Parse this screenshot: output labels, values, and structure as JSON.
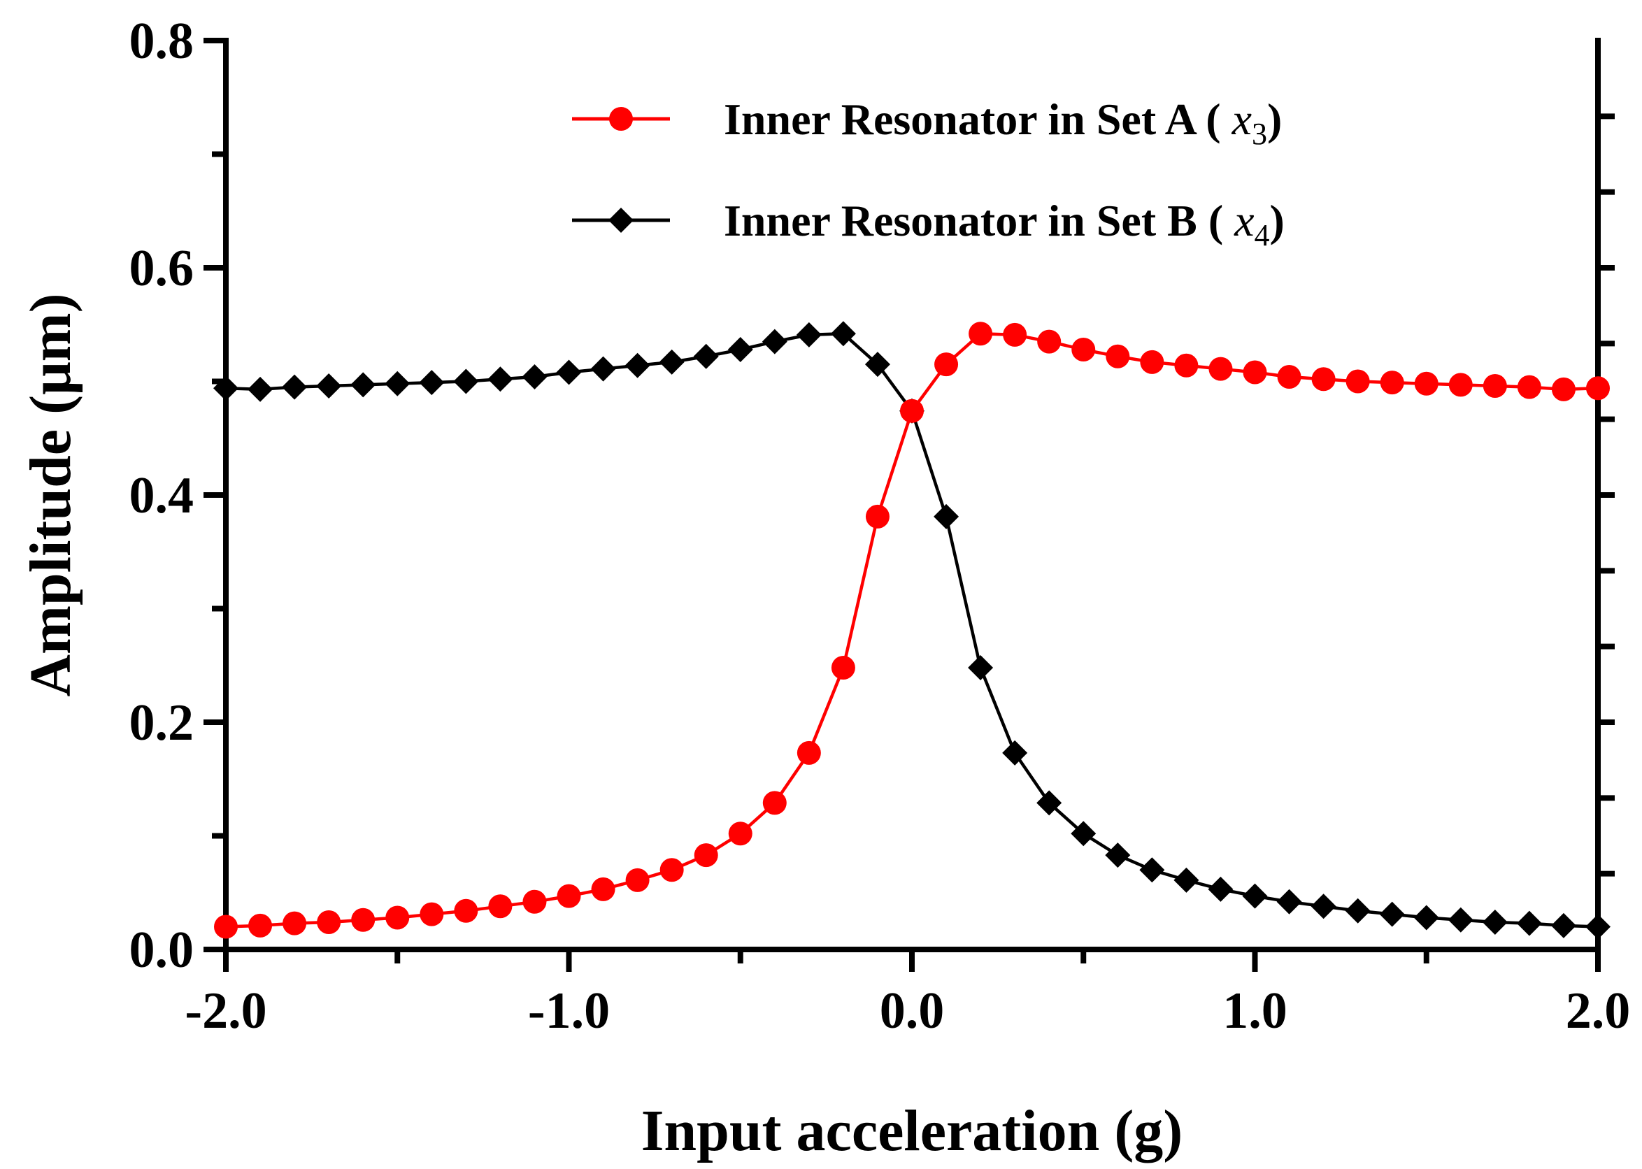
{
  "chart_data": {
    "type": "line",
    "title": "",
    "xlabel": "Input acceleration (g)",
    "ylabel": "Amplitude (μm)",
    "xlim": [
      -2.0,
      2.0
    ],
    "ylim": [
      0.0,
      0.8
    ],
    "xticks": [
      -2.0,
      -1.0,
      0.0,
      1.0,
      2.0
    ],
    "xtick_labels": [
      "-2.0",
      "-1.0",
      "0.0",
      "1.0",
      "2.0"
    ],
    "yticks": [
      0.0,
      0.2,
      0.4,
      0.6,
      0.8
    ],
    "ytick_labels": [
      "0.0",
      "0.2",
      "0.4",
      "0.6",
      "0.8"
    ],
    "grid": false,
    "legend_position": "top-right",
    "x": [
      -2.0,
      -1.9,
      -1.8,
      -1.7,
      -1.6,
      -1.5,
      -1.4,
      -1.3,
      -1.2,
      -1.1,
      -1.0,
      -0.9,
      -0.8,
      -0.7,
      -0.6,
      -0.5,
      -0.4,
      -0.3,
      -0.2,
      -0.1,
      0.0,
      0.1,
      0.2,
      0.3,
      0.4,
      0.5,
      0.6,
      0.7,
      0.8,
      0.9,
      1.0,
      1.1,
      1.2,
      1.3,
      1.4,
      1.5,
      1.6,
      1.7,
      1.8,
      1.9,
      2.0
    ],
    "series": [
      {
        "name": "Inner Resonator in Set A (",
        "name_var": "x",
        "name_sub": "3",
        "name_end": ")",
        "color": "#ff0000",
        "marker": "circle",
        "values": [
          0.02,
          0.021,
          0.023,
          0.024,
          0.026,
          0.028,
          0.031,
          0.034,
          0.038,
          0.042,
          0.047,
          0.053,
          0.061,
          0.07,
          0.083,
          0.102,
          0.129,
          0.173,
          0.248,
          0.381,
          0.474,
          0.515,
          0.542,
          0.541,
          0.535,
          0.528,
          0.522,
          0.517,
          0.514,
          0.511,
          0.508,
          0.504,
          0.502,
          0.5,
          0.499,
          0.498,
          0.497,
          0.496,
          0.495,
          0.493,
          0.494
        ]
      },
      {
        "name": "Inner Resonator in Set B (",
        "name_var": "x",
        "name_sub": "4",
        "name_end": ")",
        "color": "#000000",
        "marker": "diamond",
        "values": [
          0.494,
          0.493,
          0.495,
          0.496,
          0.497,
          0.498,
          0.499,
          0.5,
          0.502,
          0.504,
          0.508,
          0.511,
          0.514,
          0.517,
          0.522,
          0.528,
          0.535,
          0.541,
          0.542,
          0.515,
          0.474,
          0.381,
          0.248,
          0.173,
          0.129,
          0.102,
          0.083,
          0.07,
          0.061,
          0.053,
          0.047,
          0.042,
          0.038,
          0.034,
          0.031,
          0.028,
          0.026,
          0.024,
          0.023,
          0.021,
          0.02
        ]
      }
    ]
  }
}
